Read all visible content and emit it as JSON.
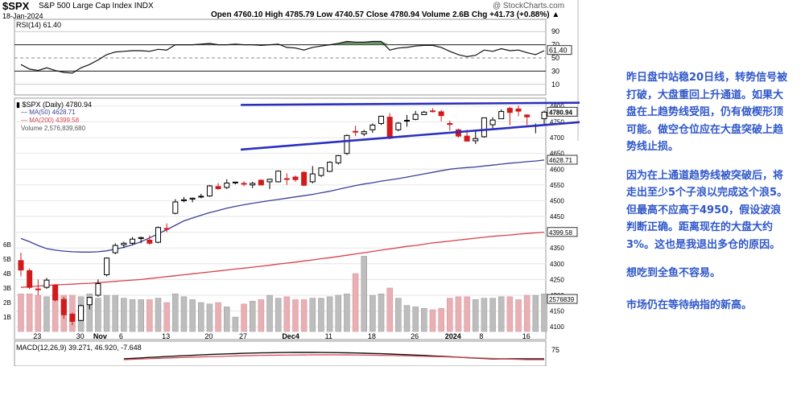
{
  "header": {
    "symbol": "$SPX",
    "name": "S&P 500 Large Cap Index  INDX",
    "date": "18-Jan-2024",
    "ohlc": "Open 4760.10  High 4785.79  Low 4740.57  Close 4780.94  Volume 2.6B  Chg +41.73 (+0.88%) ▲",
    "watermark": "@ StockCharts.com"
  },
  "rsi": {
    "label": "RSI(14) 61.40",
    "value_label": "61.40",
    "levels": [
      "90",
      "70",
      "50",
      "30",
      "10"
    ]
  },
  "price_legend": {
    "series": "▮ $SPX (Daily) 4780.94",
    "ma50": "— MA(50) 4628.71",
    "ma200": "— MA(200) 4399.58",
    "volume": "Volume 2,576,839,680"
  },
  "price_axis": [
    "4800",
    "4750",
    "4700",
    "4650",
    "4600",
    "4550",
    "4500",
    "4450",
    "4400",
    "4350",
    "4300",
    "4250",
    "4200",
    "4150",
    "4100"
  ],
  "price_tags": {
    "close": "4780.94",
    "ma50": "4628.71",
    "ma200": "4399.58",
    "vol": "2576839"
  },
  "volume_axis": [
    "6B",
    "5B",
    "4B",
    "3B",
    "2B",
    "1B"
  ],
  "x_labels": [
    "23",
    "30",
    "Nov",
    "6",
    "13",
    "20",
    "27",
    "Dec4",
    "11",
    "18",
    "26",
    "2024",
    "8",
    "16"
  ],
  "macd": {
    "label": "MACD(12,26,9) 39.271, 46.920, -7.648",
    "level": "75"
  },
  "notes": [
    "昨日盘中站稳20日线，转势信号被打破，大盘重回上升通道。如果大盘在上趋势线受阻，仍有做楔形顶可能。做空仓位应在大盘突破上趋势线止损。",
    "因为在上通道趋势线被突破后，将走出至少5个子浪以完成这个浪5。但最高不应高于4950，假设波浪判断正确。距离现在的大盘大约3%。这也是我退出多仓的原因。",
    "想吃到全鱼不容易。",
    "市场仍在等待纳指的新高。"
  ],
  "colors": {
    "up": "#000000",
    "down": "#d11a1a",
    "ma50": "#3b3f99",
    "ma200": "#d9404a",
    "trend": "#2a2fbf",
    "note": "#2f57c9",
    "rsi_fill": "#5a8a5a"
  },
  "chart_data": {
    "type": "candlestick",
    "dates": [
      "10-19",
      "10-20",
      "10-23",
      "10-24",
      "10-25",
      "10-26",
      "10-27",
      "10-30",
      "10-31",
      "11-01",
      "11-02",
      "11-03",
      "11-06",
      "11-07",
      "11-08",
      "11-09",
      "11-10",
      "11-13",
      "11-14",
      "11-15",
      "11-16",
      "11-17",
      "11-20",
      "11-21",
      "11-22",
      "11-24",
      "11-27",
      "11-28",
      "11-29",
      "11-30",
      "12-01",
      "12-04",
      "12-05",
      "12-06",
      "12-07",
      "12-08",
      "12-11",
      "12-12",
      "12-13",
      "12-14",
      "12-15",
      "12-18",
      "12-19",
      "12-20",
      "12-21",
      "12-22",
      "12-26",
      "12-27",
      "12-28",
      "12-29",
      "01-02",
      "01-03",
      "01-04",
      "01-05",
      "01-08",
      "01-09",
      "01-10",
      "01-11",
      "01-12",
      "01-16",
      "01-17",
      "01-18"
    ],
    "ohlc": [
      [
        4310,
        4335,
        4260,
        4280
      ],
      [
        4278,
        4285,
        4220,
        4225
      ],
      [
        4220,
        4250,
        4200,
        4218
      ],
      [
        4225,
        4255,
        4220,
        4248
      ],
      [
        4232,
        4235,
        4180,
        4185
      ],
      [
        4187,
        4195,
        4125,
        4138
      ],
      [
        4140,
        4145,
        4105,
        4117
      ],
      [
        4120,
        4170,
        4118,
        4167
      ],
      [
        4170,
        4195,
        4155,
        4193
      ],
      [
        4200,
        4250,
        4195,
        4237
      ],
      [
        4265,
        4320,
        4260,
        4318
      ],
      [
        4335,
        4365,
        4330,
        4358
      ],
      [
        4360,
        4370,
        4350,
        4365
      ],
      [
        4365,
        4385,
        4360,
        4378
      ],
      [
        4380,
        4386,
        4365,
        4383
      ],
      [
        4375,
        4390,
        4360,
        4365
      ],
      [
        4368,
        4418,
        4365,
        4415
      ],
      [
        4412,
        4428,
        4400,
        4411
      ],
      [
        4460,
        4505,
        4457,
        4496
      ],
      [
        4500,
        4512,
        4495,
        4503
      ],
      [
        4505,
        4510,
        4495,
        4508
      ],
      [
        4512,
        4522,
        4508,
        4514
      ],
      [
        4515,
        4550,
        4512,
        4547
      ],
      [
        4545,
        4556,
        4535,
        4538
      ],
      [
        4542,
        4568,
        4537,
        4556
      ],
      [
        4557,
        4560,
        4552,
        4559
      ],
      [
        4555,
        4562,
        4546,
        4554
      ],
      [
        4550,
        4560,
        4540,
        4555
      ],
      [
        4565,
        4568,
        4548,
        4550
      ],
      [
        4560,
        4570,
        4537,
        4568
      ],
      [
        4560,
        4595,
        4558,
        4594
      ],
      [
        4570,
        4587,
        4550,
        4569
      ],
      [
        4575,
        4580,
        4560,
        4567
      ],
      [
        4590,
        4593,
        4546,
        4549
      ],
      [
        4560,
        4610,
        4555,
        4585
      ],
      [
        4580,
        4605,
        4575,
        4604
      ],
      [
        4593,
        4625,
        4591,
        4622
      ],
      [
        4620,
        4645,
        4615,
        4643
      ],
      [
        4650,
        4710,
        4645,
        4707
      ],
      [
        4720,
        4738,
        4705,
        4719
      ],
      [
        4712,
        4725,
        4705,
        4719
      ],
      [
        4725,
        4745,
        4715,
        4740
      ],
      [
        4745,
        4770,
        4740,
        4768
      ],
      [
        4765,
        4778,
        4695,
        4698
      ],
      [
        4725,
        4750,
        4720,
        4746
      ],
      [
        4753,
        4772,
        4735,
        4755
      ],
      [
        4758,
        4785,
        4755,
        4774
      ],
      [
        4773,
        4785,
        4772,
        4781
      ],
      [
        4785,
        4793,
        4780,
        4783
      ],
      [
        4782,
        4788,
        4752,
        4770
      ],
      [
        4745,
        4754,
        4723,
        4742
      ],
      [
        4725,
        4729,
        4700,
        4705
      ],
      [
        4705,
        4725,
        4690,
        4689
      ],
      [
        4690,
        4720,
        4680,
        4697
      ],
      [
        4703,
        4764,
        4700,
        4763
      ],
      [
        4741,
        4765,
        4730,
        4756
      ],
      [
        4760,
        4790,
        4759,
        4783
      ],
      [
        4793,
        4798,
        4739,
        4780
      ],
      [
        4791,
        4802,
        4768,
        4784
      ],
      [
        4772,
        4774,
        4740,
        4766
      ],
      [
        4739,
        4745,
        4714,
        4739
      ],
      [
        4760,
        4786,
        4740,
        4781
      ]
    ],
    "volume_b": [
      2.6,
      2.6,
      2.5,
      2.4,
      2.6,
      2.5,
      2.5,
      2.4,
      2.6,
      2.3,
      2.5,
      2.5,
      2.3,
      2.2,
      2.2,
      2.2,
      2.3,
      2.0,
      2.6,
      2.4,
      2.2,
      2.0,
      1.9,
      2.0,
      1.7,
      1.0,
      1.9,
      2.1,
      2.2,
      2.5,
      2.3,
      2.4,
      2.2,
      2.2,
      2.3,
      2.3,
      2.4,
      2.5,
      2.6,
      4.0,
      5.2,
      2.5,
      2.6,
      3.0,
      2.3,
      1.8,
      1.7,
      1.6,
      1.5,
      1.6,
      2.3,
      2.4,
      2.4,
      2.2,
      2.3,
      2.3,
      2.4,
      2.4,
      2.2,
      2.5,
      2.5,
      2.6
    ],
    "ma50": [
      4380,
      4370,
      4358,
      4348,
      4343,
      4340,
      4338,
      4337,
      4337,
      4338,
      4341,
      4346,
      4352,
      4360,
      4370,
      4382,
      4395,
      4408,
      4422,
      4436,
      4445,
      4454,
      4462,
      4469,
      4476,
      4482,
      4487,
      4492,
      4496,
      4500,
      4504,
      4508,
      4512,
      4516,
      4520,
      4525,
      4530,
      4536,
      4542,
      4548,
      4553,
      4557,
      4562,
      4566,
      4570,
      4575,
      4580,
      4585,
      4590,
      4595,
      4600,
      4603,
      4605,
      4607,
      4610,
      4613,
      4616,
      4619,
      4621,
      4624,
      4626,
      4629
    ],
    "ma200": [
      4225,
      4227,
      4229,
      4231,
      4233,
      4234,
      4235,
      4237,
      4238,
      4240,
      4242,
      4244,
      4246,
      4248,
      4250,
      4253,
      4256,
      4259,
      4262,
      4265,
      4268,
      4271,
      4274,
      4277,
      4280,
      4283,
      4286,
      4289,
      4292,
      4295,
      4299,
      4302,
      4305,
      4309,
      4312,
      4316,
      4319,
      4323,
      4327,
      4331,
      4335,
      4339,
      4343,
      4347,
      4351,
      4355,
      4358,
      4362,
      4366,
      4369,
      4372,
      4375,
      4378,
      4381,
      4384,
      4387,
      4389,
      4391,
      4394,
      4396,
      4398,
      4400
    ],
    "rsi": [
      40,
      33,
      31,
      35,
      31,
      28,
      27,
      35,
      40,
      47,
      55,
      59,
      60,
      61,
      61,
      60,
      63,
      62,
      70,
      70,
      70,
      71,
      72,
      70,
      70,
      71,
      70,
      70,
      69,
      70,
      71,
      66,
      65,
      62,
      66,
      68,
      70,
      72,
      75,
      74,
      74,
      75,
      75,
      62,
      65,
      66,
      68,
      69,
      69,
      66,
      60,
      55,
      52,
      54,
      62,
      60,
      64,
      61,
      62,
      58,
      55,
      61
    ],
    "trendlines": [
      {
        "name": "upper",
        "from": [
          "11-27",
          4804
        ],
        "to": [
          "01-18",
          4810
        ]
      },
      {
        "name": "lower",
        "from": [
          "11-27",
          4663
        ],
        "to": [
          "01-18",
          4740
        ]
      }
    ],
    "ylim": [
      4085,
      4810
    ]
  }
}
